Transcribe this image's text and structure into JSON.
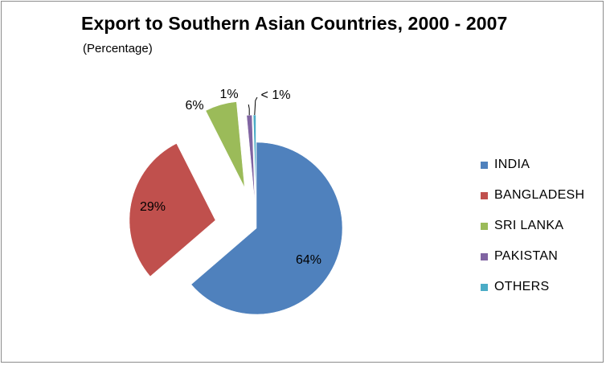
{
  "chart_data": {
    "type": "pie",
    "title": "Export to Southern Asian Countries, 2000 - 2007",
    "subtitle": "(Percentage)",
    "categories": [
      "INDIA",
      "BANGLADESH",
      "SRI LANKA",
      "PAKISTAN",
      "OTHERS"
    ],
    "values": [
      64,
      29,
      6,
      1,
      0.5
    ],
    "data_labels": [
      "64%",
      "29%",
      "6%",
      "1%",
      "< 1%"
    ],
    "colors": [
      "#4f81bd",
      "#c0504d",
      "#9bbb59",
      "#8064a2",
      "#4bacc6"
    ],
    "exploded": true,
    "legend": "right"
  }
}
